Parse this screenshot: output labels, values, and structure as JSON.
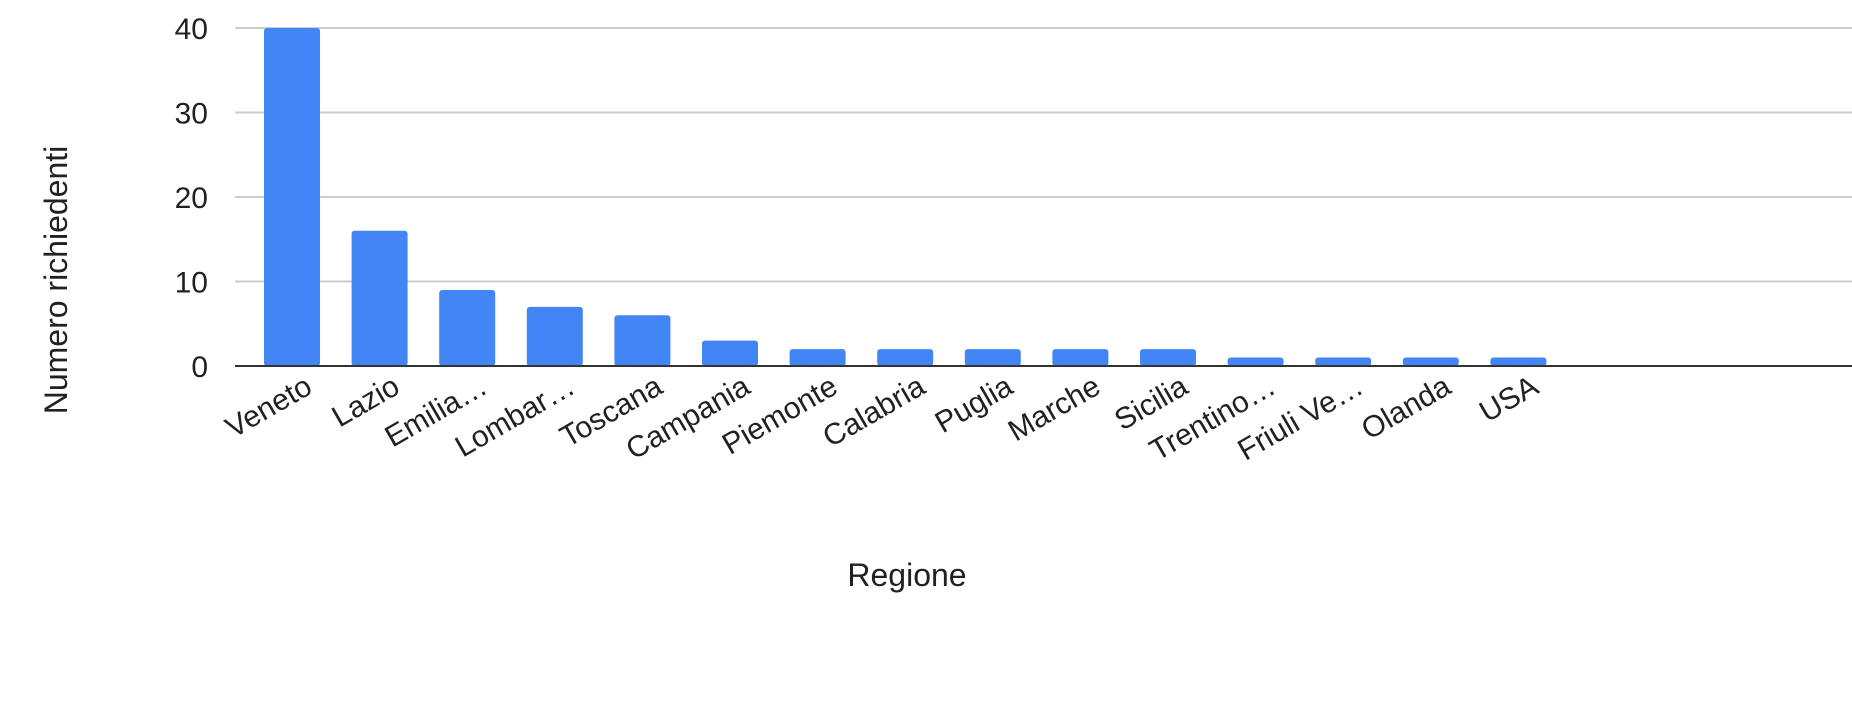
{
  "chart_data": {
    "type": "bar",
    "title": "",
    "xlabel": "Regione",
    "ylabel": "Numero richiedenti",
    "categories": [
      "Veneto",
      "Lazio",
      "Emilia…",
      "Lombar…",
      "Toscana",
      "Campania",
      "Piemonte",
      "Calabria",
      "Puglia",
      "Marche",
      "Sicilia",
      "Trentino…",
      "Friuli Ve…",
      "Olanda",
      "USA"
    ],
    "values": [
      40,
      16,
      9,
      7,
      6,
      3,
      2,
      2,
      2,
      2,
      2,
      1,
      1,
      1,
      1
    ],
    "yticks": [
      "0",
      "10",
      "20",
      "30",
      "40"
    ],
    "ylim": [
      0,
      40
    ],
    "grid": true,
    "legend": "none",
    "colors": {
      "bar": "#4285f4",
      "grid": "#cccccc",
      "axis": "#333333"
    }
  }
}
